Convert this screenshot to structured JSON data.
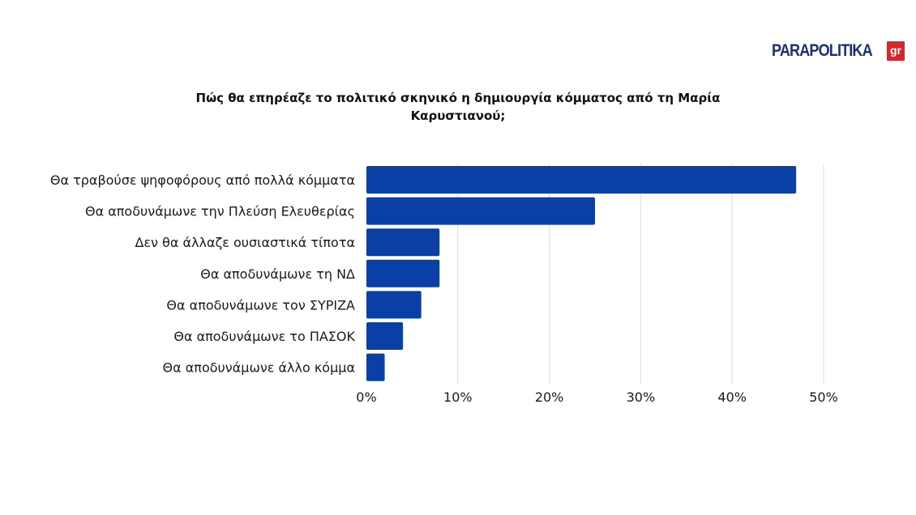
{
  "logo": {
    "text": "PARAPOLITIKA",
    "badge": "gr"
  },
  "colors": {
    "bar": "#0a3fa6",
    "grid": "#dddddd",
    "logo_text": "#1f2f75",
    "logo_badge": "#d7262c"
  },
  "chart_data": {
    "type": "bar",
    "orientation": "horizontal",
    "title_lines": [
      "Πώς θα επηρέαζε το πολιτικό σκηνικό η δημιουργία κόμματος από τη Μαρία",
      "Καρυστιανού;"
    ],
    "categories": [
      "Θα τραβούσε ψηφοφόρους από πολλά κόμματα",
      "Θα αποδυνάμωνε την Πλεύση Ελευθερίας",
      "Δεν θα άλλαζε ουσιαστικά τίποτα",
      "Θα αποδυνάμωνε τη ΝΔ",
      "Θα αποδυνάμωνε τον ΣΥΡΙΖΑ",
      "Θα αποδυνάμωνε το ΠΑΣΟΚ",
      "Θα αποδυνάμωνε άλλο κόμμα"
    ],
    "values": [
      47,
      25,
      8,
      8,
      6,
      4,
      2
    ],
    "xlim": [
      0,
      50
    ],
    "xticks": [
      0,
      10,
      20,
      30,
      40,
      50
    ],
    "xtick_labels": [
      "0%",
      "10%",
      "20%",
      "30%",
      "40%",
      "50%"
    ],
    "grid": true,
    "legend": "none"
  }
}
